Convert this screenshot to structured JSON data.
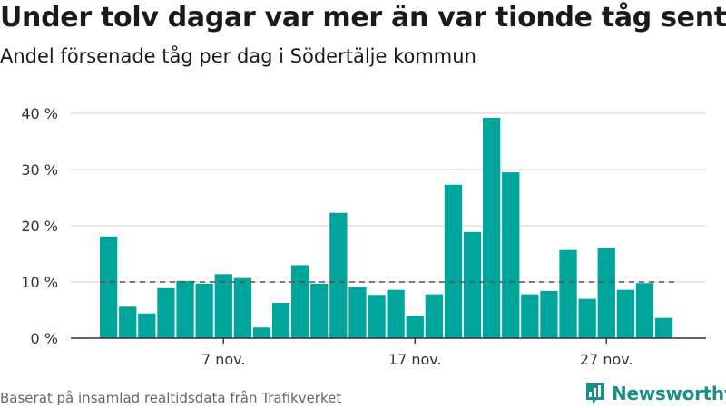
{
  "title": "Under tolv dagar var mer än var tionde tåg sent",
  "subtitle": "Andel försenade tåg per dag i Södertälje kommun",
  "footer": "Baserat på insamlad realtidsdata från Trafikverket",
  "logo": {
    "text": "Newsworthy",
    "icon": "newsworthy-logo-icon",
    "color": "#1b8f86"
  },
  "colors": {
    "bar": "#00a69c",
    "reference_line": "#555555",
    "grid": "#d9d9d9",
    "axis": "#333333",
    "text": "#333333"
  },
  "chart_data": {
    "type": "bar",
    "x_dates": [
      "2020-11-01",
      "2020-11-02",
      "2020-11-03",
      "2020-11-04",
      "2020-11-05",
      "2020-11-06",
      "2020-11-07",
      "2020-11-08",
      "2020-11-09",
      "2020-11-10",
      "2020-11-11",
      "2020-11-12",
      "2020-11-13",
      "2020-11-14",
      "2020-11-15",
      "2020-11-16",
      "2020-11-17",
      "2020-11-18",
      "2020-11-19",
      "2020-11-20",
      "2020-11-21",
      "2020-11-22",
      "2020-11-23",
      "2020-11-24",
      "2020-11-25",
      "2020-11-26",
      "2020-11-27",
      "2020-11-28",
      "2020-11-29",
      "2020-11-30"
    ],
    "values": [
      18.1,
      5.6,
      4.4,
      8.9,
      10.2,
      9.7,
      11.4,
      10.7,
      1.9,
      6.3,
      13.0,
      9.7,
      22.3,
      9.1,
      7.7,
      8.6,
      4.0,
      7.8,
      27.3,
      18.9,
      39.2,
      29.5,
      7.8,
      8.4,
      15.7,
      7.0,
      16.1,
      8.6,
      9.8,
      3.6
    ],
    "reference_line": 10,
    "ylim": [
      0,
      40
    ],
    "yticks": [
      {
        "value": 0,
        "label": "0 %"
      },
      {
        "value": 10,
        "label": "10 %"
      },
      {
        "value": 20,
        "label": "20 %"
      },
      {
        "value": 30,
        "label": "30 %"
      },
      {
        "value": 40,
        "label": "40 %"
      }
    ],
    "xticks": [
      {
        "date": "2020-11-07",
        "label": "7 nov."
      },
      {
        "date": "2020-11-17",
        "label": "17 nov."
      },
      {
        "date": "2020-11-27",
        "label": "27 nov."
      }
    ],
    "grid": true
  }
}
